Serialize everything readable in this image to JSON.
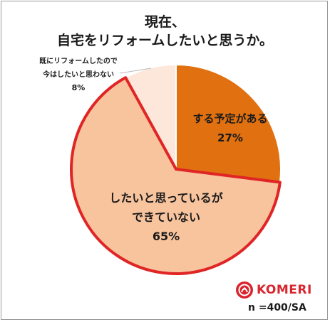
{
  "chart_data": {
    "type": "pie",
    "title_line1": "現在、",
    "title_line2": "自宅をリフォームしたいと思うか。",
    "slices": [
      {
        "label_lines": [
          "する予定がある"
        ],
        "value": 27,
        "value_label": "27%",
        "color": "#e07010",
        "stroke": "#ffffff",
        "highlight": false
      },
      {
        "label_lines": [
          "したいと思っているが",
          "できていない"
        ],
        "value": 65,
        "value_label": "65%",
        "color": "#f8c49e",
        "stroke": "#e02525",
        "highlight": true
      },
      {
        "label_lines": [
          "既にリフォームしたので",
          "今はしたいと思わない"
        ],
        "value": 8,
        "value_label": "8%",
        "color": "#fde7da",
        "stroke": "#ffffff",
        "highlight": false
      }
    ],
    "start_angle_deg": 0,
    "direction": "clockwise"
  },
  "brand": {
    "name": "KOMERI",
    "color": "#d8252e"
  },
  "sample_note": "n =400/SA"
}
